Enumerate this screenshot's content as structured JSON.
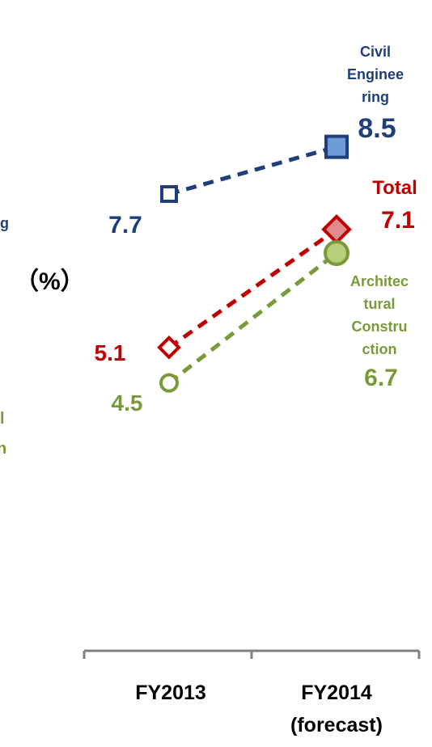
{
  "chart_data": {
    "type": "line",
    "categories": [
      "FY2013",
      "FY2014"
    ],
    "category_sublabels": [
      "",
      "(forecast)"
    ],
    "unit_label": "（%）",
    "ylim": [
      0,
      10
    ],
    "grid": false,
    "legend": "inline labels",
    "series": [
      {
        "name": "Civil Engineering",
        "label_lines": [
          "Civil",
          "Enginee",
          "ring"
        ],
        "values": [
          7.7,
          8.5
        ],
        "color": "#1f3f78",
        "fill": "#6f9ad8",
        "marker": "square"
      },
      {
        "name": "Total",
        "label_lines": [
          "Total"
        ],
        "values": [
          5.1,
          7.1
        ],
        "color": "#c00000",
        "fill": "#e08c8c",
        "marker": "diamond"
      },
      {
        "name": "Architectural Construction",
        "label_lines": [
          "Architec",
          "tural",
          "Constru",
          "ction"
        ],
        "values": [
          4.5,
          6.7
        ],
        "color": "#7a9a3a",
        "fill": "#b5cf7a",
        "marker": "circle"
      }
    ],
    "value_labels": [
      "7.7",
      "8.5",
      "5.1",
      "7.1",
      "4.5",
      "6.7"
    ]
  },
  "cut_off": {
    "civil_tail": "g",
    "arch_tail_1": "l",
    "arch_tail_2": "n"
  }
}
